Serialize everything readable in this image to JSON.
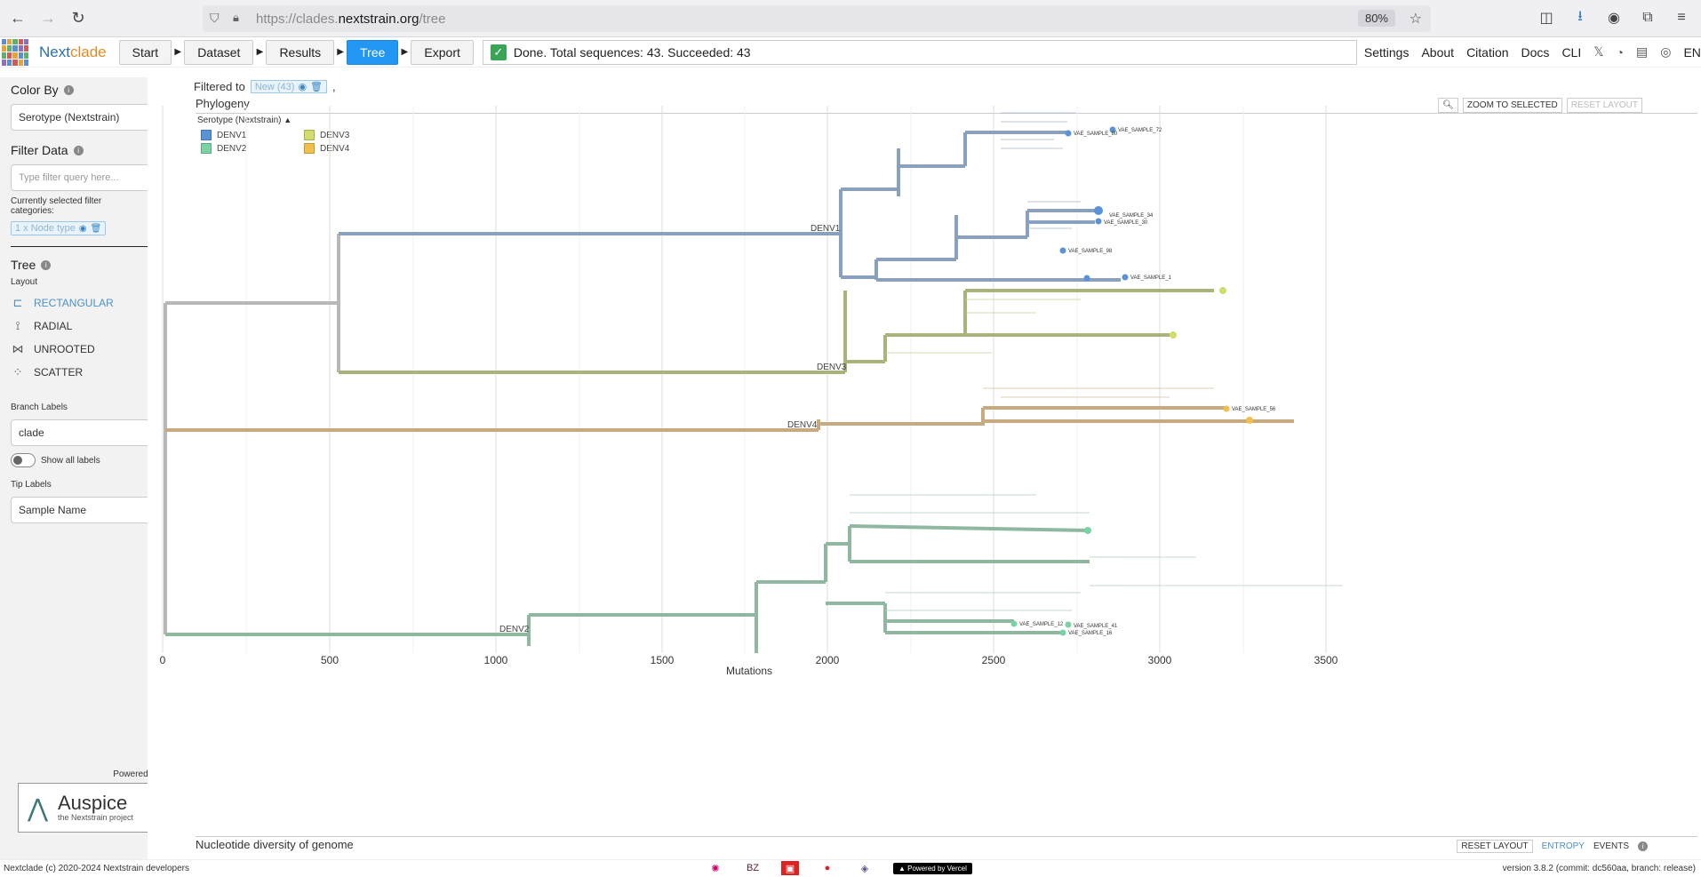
{
  "browser": {
    "url_prefix": "https://clades.",
    "url_domain": "nextstrain.org",
    "url_path": "/tree",
    "zoom": "80%"
  },
  "app": {
    "brand_part1": "Next",
    "brand_part2": "clade",
    "steps": [
      "Start",
      "Dataset",
      "Results",
      "Tree",
      "Export"
    ],
    "active_step": "Tree",
    "status": "Done. Total sequences: 43. Succeeded: 43",
    "links": [
      "Settings",
      "About",
      "Citation",
      "Docs",
      "CLI"
    ],
    "lang": "EN"
  },
  "sidebar": {
    "color_by_title": "Color By",
    "color_by_value": "Serotype (Nextstrain)",
    "filter_title": "Filter Data",
    "filter_placeholder": "Type filter query here...",
    "selected_label": "Currently selected filter categories:",
    "selected_chip": "1 x Node type",
    "tree_title": "Tree",
    "layout_label": "Layout",
    "layouts": [
      "RECTANGULAR",
      "RADIAL",
      "UNROOTED",
      "SCATTER"
    ],
    "active_layout": "RECTANGULAR",
    "branch_labels_title": "Branch Labels",
    "branch_labels_value": "clade",
    "show_all_labels": "Show all labels",
    "tip_labels_title": "Tip Labels",
    "tip_labels_value": "Sample Name",
    "powered_by": "Powered by",
    "auspice_name": "Auspice",
    "auspice_sub": "the Nextstrain project"
  },
  "main": {
    "filtered_to": "Filtered to",
    "filter_chip": "New (43)",
    "phylogeny_title": "Phylogeny",
    "zoom_to_selected": "ZOOM TO SELECTED",
    "reset_layout": "RESET LAYOUT",
    "legend_title": "Serotype (Nextstrain)",
    "legend": [
      {
        "label": "DENV1",
        "color": "#5a92d8"
      },
      {
        "label": "DENV3",
        "color": "#d2dc6a"
      },
      {
        "label": "DENV2",
        "color": "#78d2a4"
      },
      {
        "label": "DENV4",
        "color": "#f2c04a"
      }
    ],
    "clade_labels": [
      "DENV1",
      "DENV3",
      "DENV4",
      "DENV2"
    ],
    "x_axis_label": "Mutations",
    "x_ticks": [
      "0",
      "500",
      "1000",
      "1500",
      "2000",
      "2500",
      "3000",
      "3500"
    ],
    "tip_labels": [
      "VAE_SAMPLE_72",
      "VAE_SAMPLE_80",
      "VAE_SAMPLE_30",
      "VAE_SAMPLE_34",
      "VAE_SAMPLE_98",
      "VAE_SAMPLE_1",
      "VAE_SAMPLE_56",
      "VAE_SAMPLE_12",
      "VAE_SAMPLE_41",
      "VAE_SAMPLE_16"
    ],
    "bottom_title": "Nucleotide diversity of genome",
    "bottom_reset": "RESET LAYOUT",
    "bottom_entropy": "ENTROPY",
    "bottom_events": "EVENTS"
  },
  "footer": {
    "copyright": "Nextclade (c) 2020-2024 Nextstrain developers",
    "vercel": "▲ Powered by Vercel",
    "version": "version 3.8.2 (commit: dc560aa, branch: release)"
  }
}
